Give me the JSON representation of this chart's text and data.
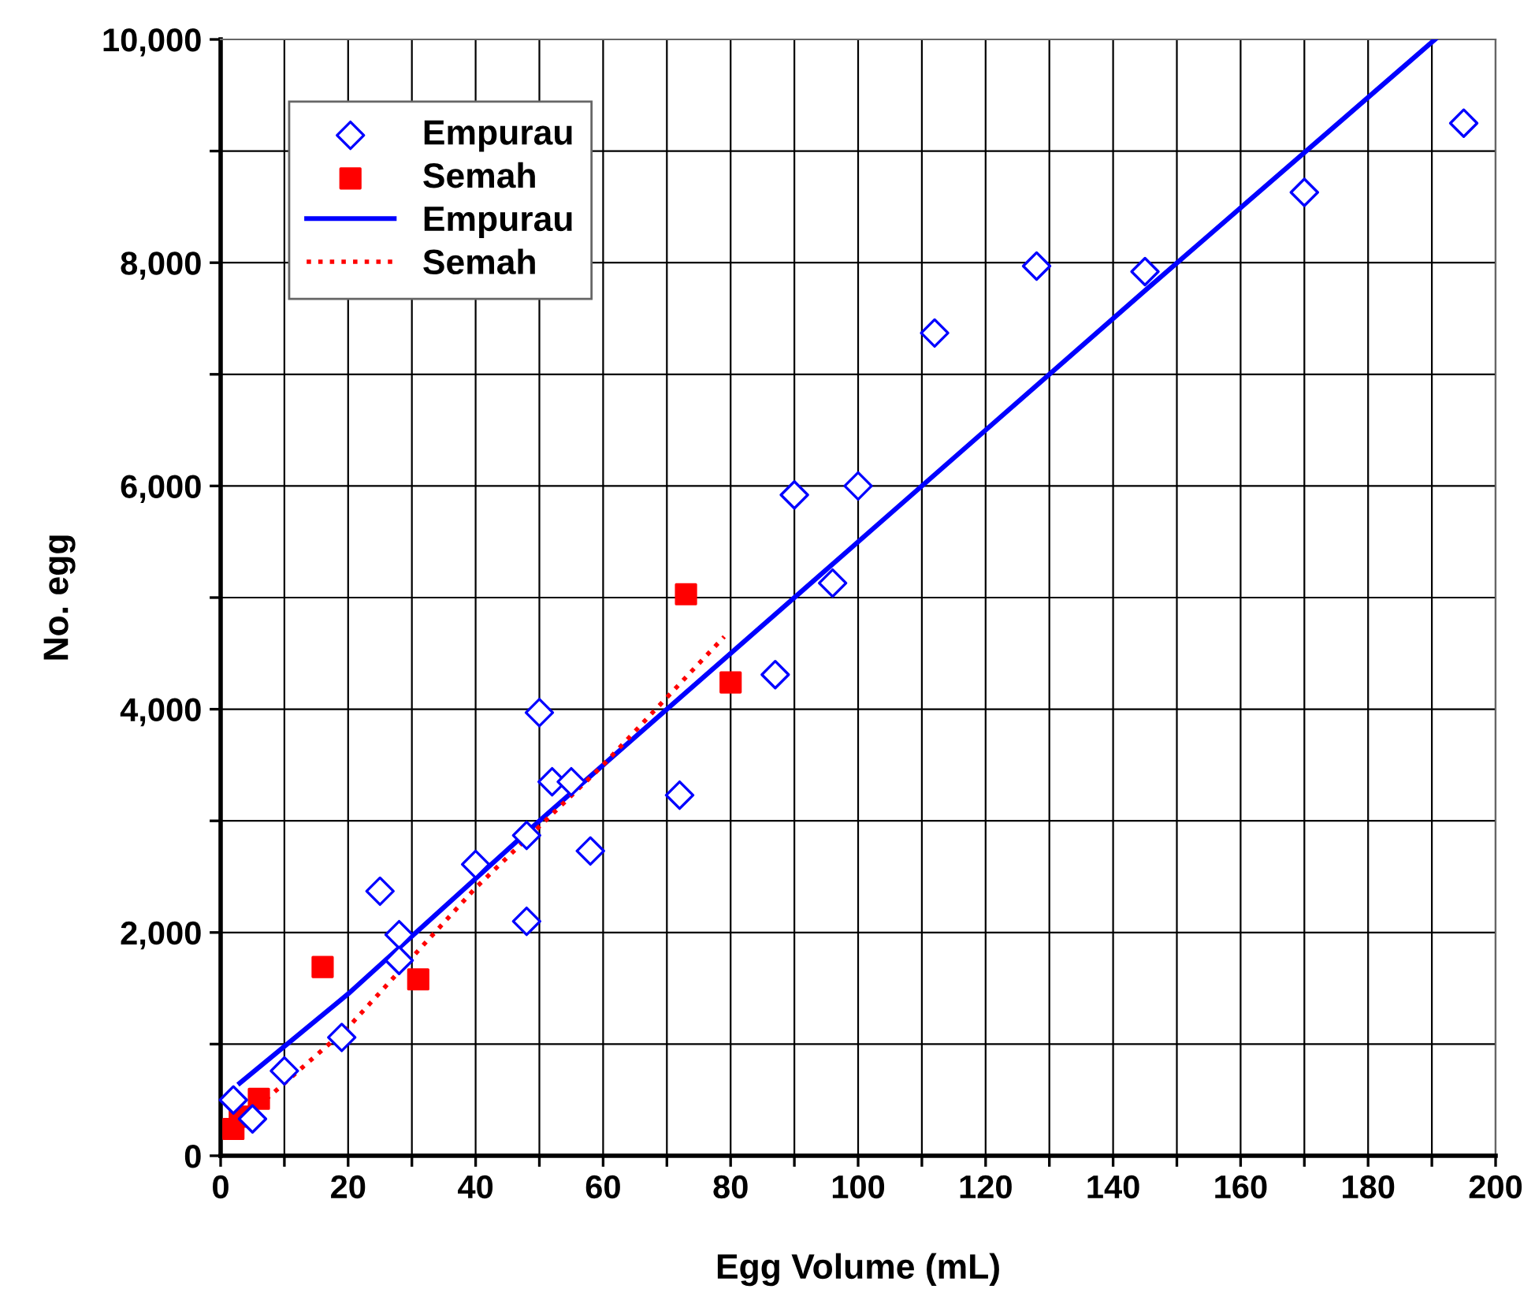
{
  "chart_data": {
    "type": "scatter",
    "xlabel": "Egg Volume (mL)",
    "ylabel": "No. egg",
    "xlim": [
      0,
      200
    ],
    "ylim": [
      0,
      10000
    ],
    "xticks": [
      0,
      {
        "value": 10,
        "label": null
      },
      20,
      {
        "value": 30,
        "label": null
      },
      40,
      {
        "value": 50,
        "label": null
      },
      60,
      {
        "value": 70,
        "label": null
      },
      80,
      {
        "value": 90,
        "label": null
      },
      100,
      {
        "value": 110,
        "label": null
      },
      120,
      {
        "value": 130,
        "label": null
      },
      140,
      {
        "value": 150,
        "label": null
      },
      160,
      {
        "value": 170,
        "label": null
      },
      180,
      {
        "value": 190,
        "label": null
      },
      200
    ],
    "yticks": [
      {
        "value": 0,
        "label": "0"
      },
      {
        "value": 1000,
        "label": null
      },
      {
        "value": 2000,
        "label": "2,000"
      },
      {
        "value": 3000,
        "label": null
      },
      {
        "value": 4000,
        "label": "4,000"
      },
      {
        "value": 5000,
        "label": null
      },
      {
        "value": 6000,
        "label": "6,000"
      },
      {
        "value": 7000,
        "label": null
      },
      {
        "value": 8000,
        "label": "8,000"
      },
      {
        "value": 9000,
        "label": null
      },
      {
        "value": 10000,
        "label": "10,000"
      }
    ],
    "grid": true,
    "legend": "top left",
    "series": [
      {
        "name": "Empurau",
        "marker": "diamond",
        "color": "#0000ff",
        "x": [
          2,
          5,
          10,
          19,
          25,
          28,
          28,
          40,
          48,
          48,
          50,
          52,
          55,
          58,
          72,
          87,
          90,
          96,
          100,
          112,
          128,
          145,
          170,
          195
        ],
        "values": [
          500,
          330,
          760,
          1060,
          2370,
          1980,
          1750,
          2610,
          2870,
          2100,
          3970,
          3350,
          3350,
          2730,
          3230,
          4310,
          5920,
          5130,
          6000,
          7370,
          7970,
          7920,
          8630,
          9250
        ]
      },
      {
        "name": "Semah",
        "marker": "square",
        "color": "#ff0000",
        "x": [
          2,
          3,
          6,
          16,
          31,
          73,
          80
        ],
        "values": [
          240,
          350,
          510,
          1690,
          1580,
          5030,
          4240
        ]
      },
      {
        "name": "Empurau",
        "type": "line",
        "line_style": "solid",
        "color": "#0000ff",
        "x": [
          3,
          20,
          50,
          100,
          145,
          190.5
        ],
        "values": [
          650,
          1450,
          3000,
          5500,
          7750,
          10000
        ]
      },
      {
        "name": "Semah",
        "type": "line",
        "line_style": "dotted",
        "color": "#ff0000",
        "x": [
          3,
          20,
          40,
          60,
          79
        ],
        "values": [
          300,
          1150,
          2400,
          3500,
          4650
        ]
      }
    ]
  }
}
